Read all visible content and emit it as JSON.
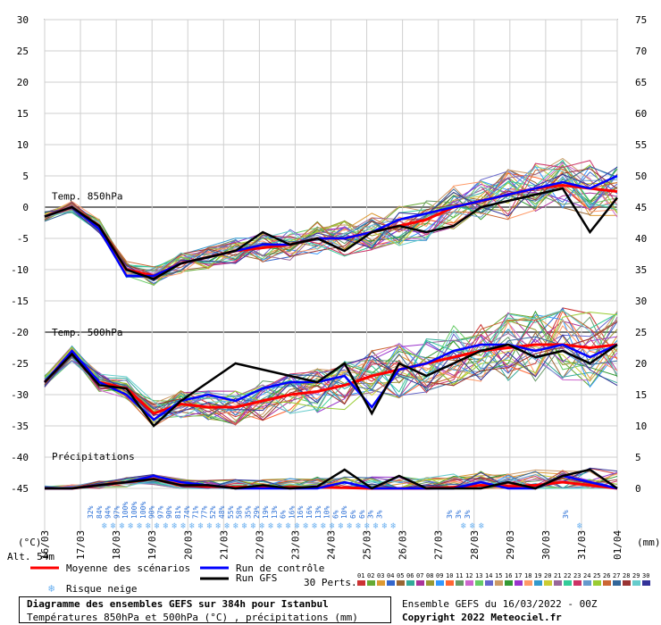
{
  "chart_data": {
    "type": "line",
    "title": "Diagramme des ensembles GEFS sur 384h pour Istanbul",
    "subtitle": "Températures 850hPa et 500hPa (°C) , précipitations (mm)",
    "left_axis": {
      "unit": "(°C)",
      "ticks": [
        30,
        25,
        20,
        15,
        10,
        5,
        0,
        -5,
        -10,
        -15,
        -20,
        -25,
        -30,
        -35,
        -40,
        -45
      ],
      "range": [
        -45,
        30
      ]
    },
    "right_axis": {
      "unit": "(mm)",
      "ticks": [
        75,
        70,
        65,
        60,
        55,
        50,
        45,
        40,
        35,
        30,
        25,
        20,
        15,
        10,
        5,
        0
      ],
      "range": [
        0,
        75
      ]
    },
    "x_dates": [
      "16/03",
      "17/03",
      "18/03",
      "19/03",
      "20/03",
      "21/03",
      "22/03",
      "23/03",
      "24/03",
      "25/03",
      "26/03",
      "27/03",
      "28/03",
      "29/03",
      "30/03",
      "31/03",
      "01/04"
    ],
    "panel_labels": {
      "t850": "Temp. 850hPa",
      "t500": "Temp. 500hPa",
      "precip": "Précipitations"
    },
    "altitude": "Alt. 54m",
    "series": [
      {
        "name": "Moyenne des scénarios",
        "color": "#ff0000",
        "t850": [
          -1.5,
          0,
          -3,
          -10,
          -11,
          -9,
          -8,
          -7,
          -6.5,
          -6,
          -5,
          -5,
          -4,
          -3,
          -2,
          0,
          1,
          2,
          3,
          3.5,
          3,
          2.5
        ],
        "t500": [
          -28,
          -23.5,
          -28,
          -29,
          -33,
          -31.5,
          -32,
          -32,
          -31,
          -30,
          -29.5,
          -28.5,
          -27,
          -26,
          -25,
          -24,
          -23,
          -22.5,
          -22,
          -22,
          -22.5,
          -22
        ],
        "precip": [
          0,
          0,
          0.5,
          1,
          1.5,
          0.5,
          0.3,
          0.2,
          0.2,
          0.1,
          0.2,
          0.1,
          0,
          0,
          0,
          0.2,
          0.5,
          0.3,
          0.5,
          1,
          0.5,
          0
        ]
      },
      {
        "name": "Run de contrôle",
        "color": "#0000ff",
        "t850": [
          -1.5,
          0,
          -3.5,
          -11,
          -11,
          -9,
          -8,
          -7,
          -6,
          -6,
          -5,
          -5,
          -4,
          -2,
          -1,
          0,
          1,
          2,
          3,
          4,
          3,
          5
        ],
        "t500": [
          -28,
          -23,
          -28,
          -30,
          -34,
          -31,
          -30,
          -31,
          -29,
          -28,
          -28,
          -27,
          -32,
          -26,
          -25,
          -23,
          -22,
          -22,
          -23,
          -22,
          -24,
          -22
        ],
        "precip": [
          0,
          0,
          0.5,
          1,
          2,
          1,
          0.5,
          0,
          0,
          0,
          0,
          1,
          0,
          0,
          0,
          0,
          1,
          0,
          0,
          2,
          1,
          0
        ]
      },
      {
        "name": "Run GFS",
        "color": "#000000",
        "t850": [
          -1.5,
          0,
          -3,
          -10,
          -11.5,
          -9,
          -8,
          -7,
          -4,
          -6,
          -5,
          -7,
          -4,
          -3,
          -4,
          -3,
          0,
          1,
          2,
          3,
          -4,
          1.5
        ],
        "t500": [
          -28,
          -23.5,
          -28.5,
          -29,
          -35,
          -31,
          -28,
          -25,
          -26,
          -27,
          -28,
          -25,
          -33,
          -25,
          -27,
          -25,
          -23,
          -22,
          -24,
          -23,
          -25,
          -22
        ],
        "precip": [
          0,
          0,
          0.5,
          1,
          1.5,
          0.5,
          0.5,
          0,
          0.5,
          0,
          0.3,
          3,
          0,
          2,
          0,
          0,
          0,
          1,
          0,
          2,
          3,
          0
        ]
      }
    ],
    "snow_risk": {
      "x_dates_start": "17/03",
      "labels": [
        "32%",
        "84%",
        "94%",
        "97%",
        "100%",
        "100%",
        "100%",
        "90%",
        "97%",
        "90%",
        "81%",
        "74%",
        "71%",
        "77%",
        "52%",
        "48%",
        "55%",
        "58%",
        "35%",
        "29%",
        "19%",
        "13%",
        "6%",
        "16%",
        "16%",
        "16%",
        "13%",
        "10%",
        "6%",
        "10%",
        "6%",
        "6%",
        "3%",
        "3%"
      ],
      "late_labels": [
        "3%",
        "3%",
        "3%",
        "3%"
      ]
    },
    "legend": {
      "mean": "Moyenne des scénarios",
      "control": "Run de contrôle",
      "gfs": "Run GFS",
      "snow": "Risque neige",
      "perts_label": "30 Perts.",
      "pert_numbers": [
        "01",
        "02",
        "03",
        "04",
        "05",
        "06",
        "07",
        "08",
        "09",
        "10",
        "11",
        "12",
        "13",
        "14",
        "15",
        "16",
        "17",
        "18",
        "19",
        "20",
        "21",
        "22",
        "23",
        "24",
        "25",
        "26",
        "27",
        "28",
        "29",
        "30"
      ]
    },
    "colors": {
      "pert_colors": [
        "#cc3333",
        "#66aa33",
        "#dd9933",
        "#3366cc",
        "#996633",
        "#33aa99",
        "#aa3399",
        "#999933",
        "#3399ff",
        "#ff6633",
        "#669966",
        "#cc66cc",
        "#66cc66",
        "#6666cc",
        "#cc9966",
        "#339933",
        "#9933cc",
        "#ff9966",
        "#3399cc",
        "#cccc33",
        "#996699",
        "#33cc99",
        "#cc3366",
        "#6699cc",
        "#99cc33",
        "#cc6633",
        "#336699",
        "#993333",
        "#66cccc",
        "#333399"
      ]
    },
    "grid": true
  },
  "footer": {
    "title": "Diagramme des ensembles GEFS sur 384h pour Istanbul",
    "subtitle": "Températures 850hPa et 500hPa (°C) , précipitations (mm)",
    "ensemble_date": "Ensemble GEFS du 16/03/2022 - 00Z",
    "copyright": "Copyright 2022 Meteociel.fr"
  }
}
